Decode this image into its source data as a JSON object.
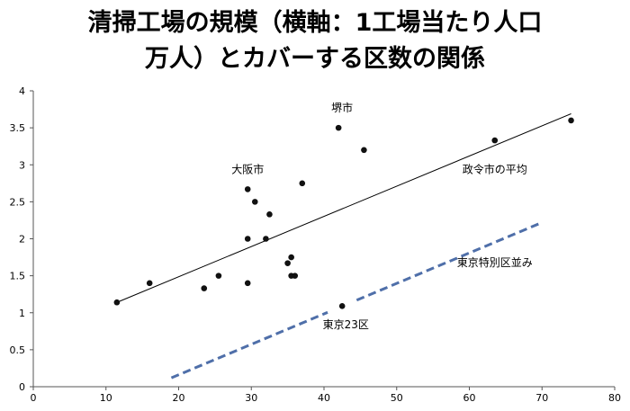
{
  "chart_data": {
    "type": "scatter",
    "title_lines": [
      "清掃工場の規模（横軸：1工場当たり人口",
      "万人）とカバーする区数の関係"
    ],
    "xlim": [
      0,
      80
    ],
    "ylim": [
      0,
      4
    ],
    "x_ticks": [
      "0",
      "10",
      "20",
      "30",
      "40",
      "50",
      "60",
      "70",
      "80"
    ],
    "y_ticks": [
      "0",
      "0.5",
      "1",
      "1.5",
      "2",
      "2.5",
      "3",
      "3.5",
      "4"
    ],
    "grid": false,
    "legend": "none",
    "points": [
      {
        "x": 11.5,
        "y": 1.14
      },
      {
        "x": 16,
        "y": 1.4
      },
      {
        "x": 23.5,
        "y": 1.33
      },
      {
        "x": 25.5,
        "y": 1.5
      },
      {
        "x": 29.5,
        "y": 1.4
      },
      {
        "x": 29.5,
        "y": 2.0
      },
      {
        "x": 29.5,
        "y": 2.67
      },
      {
        "x": 30.5,
        "y": 2.5
      },
      {
        "x": 32,
        "y": 2.0
      },
      {
        "x": 32.5,
        "y": 2.33
      },
      {
        "x": 35,
        "y": 1.67
      },
      {
        "x": 35.5,
        "y": 1.75
      },
      {
        "x": 35.5,
        "y": 1.5
      },
      {
        "x": 36,
        "y": 1.5
      },
      {
        "x": 37,
        "y": 2.75
      },
      {
        "x": 42,
        "y": 3.5
      },
      {
        "x": 42.5,
        "y": 1.09
      },
      {
        "x": 45.5,
        "y": 3.2
      },
      {
        "x": 63.5,
        "y": 3.33
      },
      {
        "x": 74,
        "y": 3.6
      }
    ],
    "trend_solid": {
      "x": [
        11.5,
        74
      ],
      "y": [
        1.14,
        3.69
      ]
    },
    "trend_dashed": {
      "x": [
        19,
        70
      ],
      "y": [
        0.12,
        2.22
      ],
      "gap_x": [
        40.5,
        44.5
      ]
    },
    "annotations": [
      {
        "text": "堺市",
        "x": 42.5,
        "y": 3.72
      },
      {
        "text": "大阪市",
        "x": 29.5,
        "y": 2.89
      },
      {
        "text": "政令市の平均",
        "x": 63.5,
        "y": 2.89
      },
      {
        "text": "東京特別区並み",
        "x": 63.5,
        "y": 1.63
      },
      {
        "text": "東京23区",
        "x": 43,
        "y": 0.79
      }
    ],
    "colors": {
      "points": "#111111",
      "trend_solid": "#000000",
      "trend_dashed": "#4f6fa9",
      "axis": "#555555"
    }
  }
}
